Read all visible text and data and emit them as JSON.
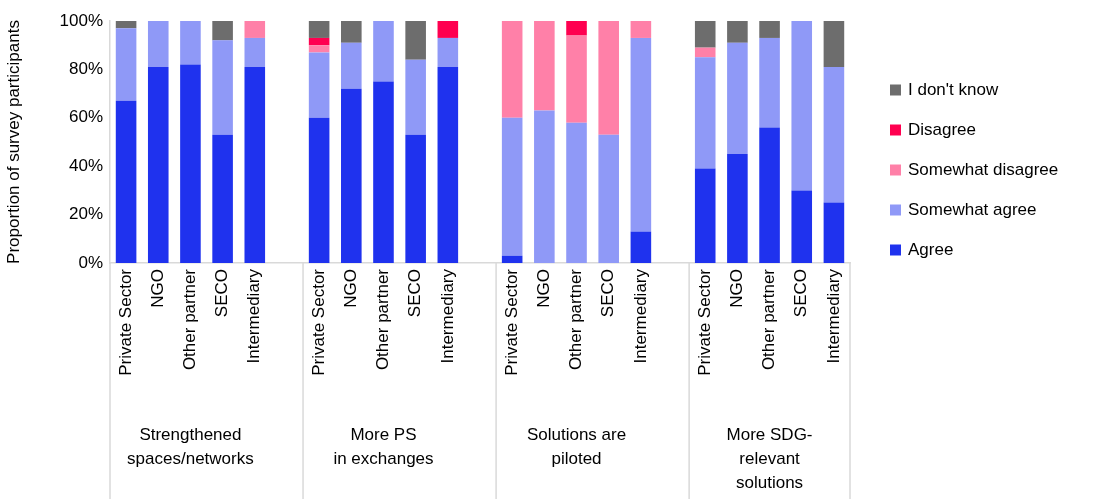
{
  "chart_data": {
    "type": "bar",
    "stacked": true,
    "ylabel": "Proportion of survey participants",
    "categories": [
      "Private Sector",
      "NGO",
      "Other partner",
      "SECO",
      "Intermediary",
      null,
      "Private Sector",
      "NGO",
      "Other partner",
      "SECO",
      "Intermediary",
      null,
      "Private Sector",
      "NGO",
      "Other partner",
      "SECO",
      "Intermediary",
      null,
      "Private Sector",
      "NGO",
      "Other partner",
      "SECO",
      "Intermediary"
    ],
    "series": [
      {
        "name": "Agree",
        "color": "#1f32ee",
        "values": [
          67,
          81,
          82,
          53,
          81,
          null,
          60,
          72,
          75,
          53,
          81,
          null,
          3,
          0,
          0,
          0,
          13,
          null,
          39,
          45,
          56,
          30,
          25
        ]
      },
      {
        "name": "Somewhat agree",
        "color": "#8f99f7",
        "values": [
          30,
          19,
          18,
          39,
          12,
          null,
          27,
          19,
          25,
          31,
          12,
          null,
          57,
          63,
          58,
          53,
          80,
          null,
          46,
          46,
          37,
          70,
          56
        ]
      },
      {
        "name": "Somewhat disagree",
        "color": "#ff80a8",
        "values": [
          0,
          0,
          0,
          0,
          7,
          null,
          3,
          0,
          0,
          0,
          0,
          null,
          40,
          37,
          36,
          47,
          7,
          null,
          4,
          0,
          0,
          0,
          0
        ]
      },
      {
        "name": "Disagree",
        "color": "#ff0050",
        "values": [
          0,
          0,
          0,
          0,
          0,
          null,
          3,
          0,
          0,
          0,
          7,
          null,
          0,
          0,
          6,
          0,
          0,
          null,
          0,
          0,
          0,
          0,
          0
        ]
      },
      {
        "name": "I don't know",
        "color": "#6d6d6d",
        "values": [
          3,
          0,
          0,
          8,
          0,
          null,
          7,
          9,
          0,
          16,
          0,
          null,
          0,
          0,
          0,
          0,
          0,
          null,
          11,
          9,
          7,
          0,
          19
        ]
      }
    ],
    "ylim": [
      0,
      100
    ],
    "yticks": [
      {
        "value": 0,
        "label": "0%"
      },
      {
        "value": 20,
        "label": "20%"
      },
      {
        "value": 40,
        "label": "40%"
      },
      {
        "value": 60,
        "label": "60%"
      },
      {
        "value": 80,
        "label": "80%"
      },
      {
        "value": 100,
        "label": "100%"
      }
    ],
    "annotations": [
      "Strengthened\nspaces/networks",
      "More PS\nin exchanges",
      "Solutions are\npiloted",
      "More SDG-\nrelevant\nsolutions"
    ],
    "legend": "right",
    "grid": false
  }
}
